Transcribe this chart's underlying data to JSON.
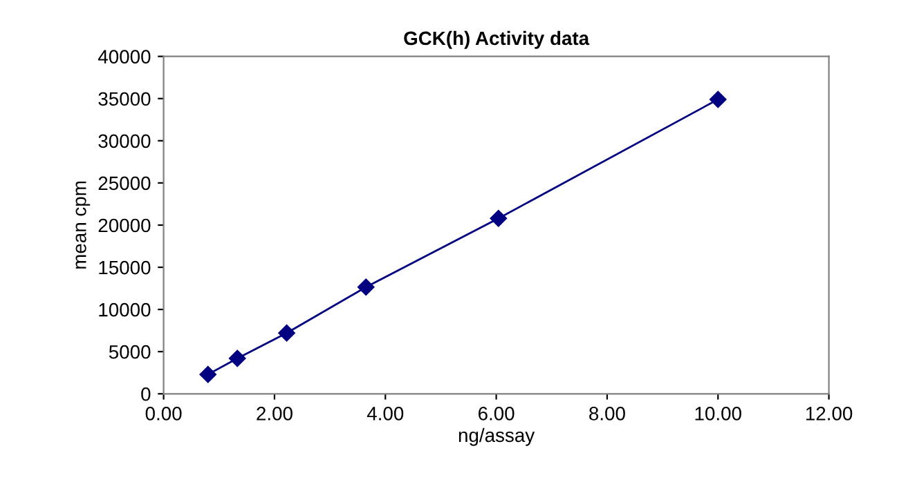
{
  "chart_data": {
    "type": "line",
    "title": "GCK(h) Activity data",
    "xlabel": "ng/assay",
    "ylabel": "mean cpm",
    "x": [
      0.8,
      1.33,
      2.22,
      3.65,
      6.04,
      10.0
    ],
    "series": [
      {
        "color": "#000080",
        "values": [
          2300,
          4200,
          7200,
          12650,
          20800,
          34900
        ]
      }
    ],
    "marker": "diamond",
    "line_style": "solid",
    "grid": false,
    "legend": false,
    "xlim": [
      0,
      12
    ],
    "xticks": [
      {
        "value": 0,
        "label": "0.00"
      },
      {
        "value": 2,
        "label": "2.00"
      },
      {
        "value": 4,
        "label": "4.00"
      },
      {
        "value": 6,
        "label": "6.00"
      },
      {
        "value": 8,
        "label": "8.00"
      },
      {
        "value": 10,
        "label": "10.00"
      },
      {
        "value": 12,
        "label": "12.00"
      }
    ],
    "ylim": [
      0,
      40000
    ],
    "yticks": [
      0,
      5000,
      10000,
      15000,
      20000,
      25000,
      30000,
      35000,
      40000
    ]
  }
}
